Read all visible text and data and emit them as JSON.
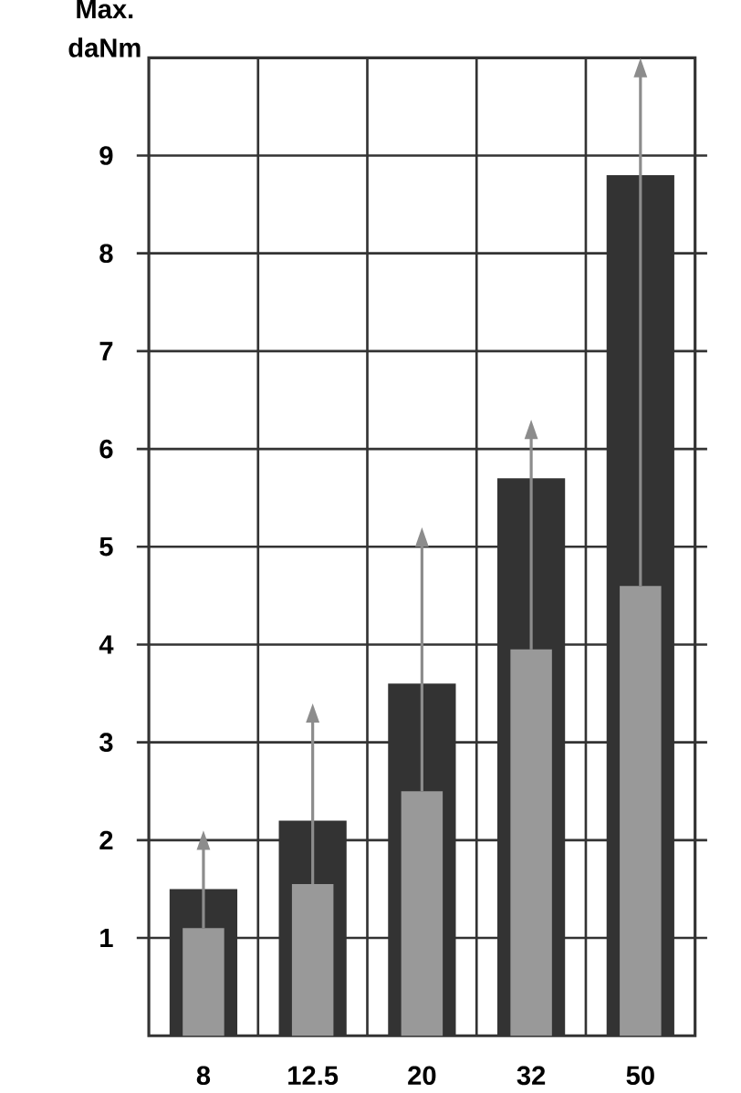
{
  "chart_data": {
    "type": "bar",
    "ylabel": "Max. daNm",
    "categories": [
      "8",
      "12.5",
      "20",
      "32",
      "50"
    ],
    "series": [
      {
        "color": "#333333",
        "values": [
          1.5,
          2.2,
          3.6,
          5.7,
          8.8
        ]
      },
      {
        "color": "#999999",
        "values": [
          1.1,
          1.55,
          2.5,
          3.95,
          4.6
        ],
        "errors": [
          [
            1.1,
            2.0
          ],
          [
            1.55,
            3.3
          ],
          [
            2.5,
            5.1
          ],
          [
            3.95,
            6.2
          ],
          [
            4.6,
            9.9
          ]
        ]
      }
    ],
    "ylim": [
      0,
      10
    ],
    "yticks": [
      1,
      2,
      3,
      4,
      5,
      6,
      7,
      8,
      9
    ],
    "grid": true
  }
}
